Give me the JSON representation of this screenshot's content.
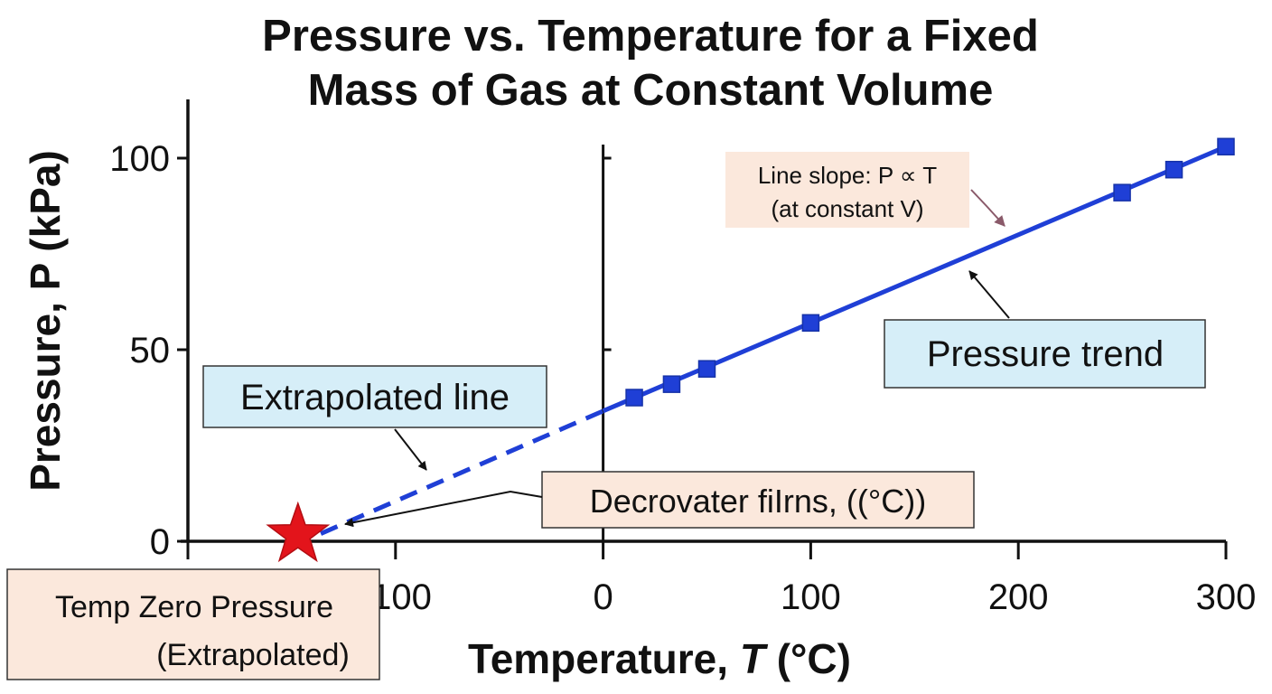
{
  "colors": {
    "series": "#1f3fd6",
    "marker": "#1f3fd6",
    "zero_marker": "#e3141b",
    "box_blue_fill": "#d6eef8",
    "box_peach_fill": "#fbe8dc",
    "axis": "#111111"
  },
  "chart_data": {
    "type": "line",
    "title": "Pressure vs. Temperature for a Fixed Mass of Gas at Constant Volume",
    "title_lines": [
      "Pressure vs. Temperature for a Fixed",
      "Mass of Gas at Constant Volume"
    ],
    "xlabel": "Temperature, T (°C)",
    "xlabel_parts": [
      "Temperature, ",
      "T",
      " (°C)"
    ],
    "ylabel": "Pressure, P (kPa)",
    "xlim": [
      -200,
      300
    ],
    "ylim": [
      0,
      100
    ],
    "x_ticks": [
      -200,
      -100,
      0,
      100,
      200,
      300
    ],
    "x_tick_labels": [
      "",
      "-100",
      "0",
      "100",
      "200",
      "300"
    ],
    "y_ticks": [
      0,
      50,
      100
    ],
    "y_tick_labels": [
      "0",
      "50",
      "100"
    ],
    "grid": false,
    "series": [
      {
        "name": "Pressure trend",
        "style": "solid",
        "x": [
          15,
          33,
          50,
          100,
          250,
          275,
          300
        ],
        "y": [
          37.5,
          41,
          45,
          57,
          91,
          97,
          103
        ]
      }
    ],
    "fit_line": {
      "x": [
        0,
        300
      ],
      "y": [
        34,
        103
      ]
    },
    "extrapolation": {
      "style": "dashed",
      "x": [
        -136,
        0
      ],
      "y": [
        2,
        34
      ]
    },
    "zero_point": {
      "x": -147,
      "y": 0
    },
    "annotations": {
      "slope": [
        "Line slope: P ∝ T",
        "(at constant V)"
      ],
      "trend": "Pressure trend",
      "extrapolated": "Extrapolated line",
      "decrovater": "Decrovater fiIrns, ((°C))",
      "zero": [
        "Temp Zero Pressure",
        "(Extrapolated)"
      ]
    }
  }
}
